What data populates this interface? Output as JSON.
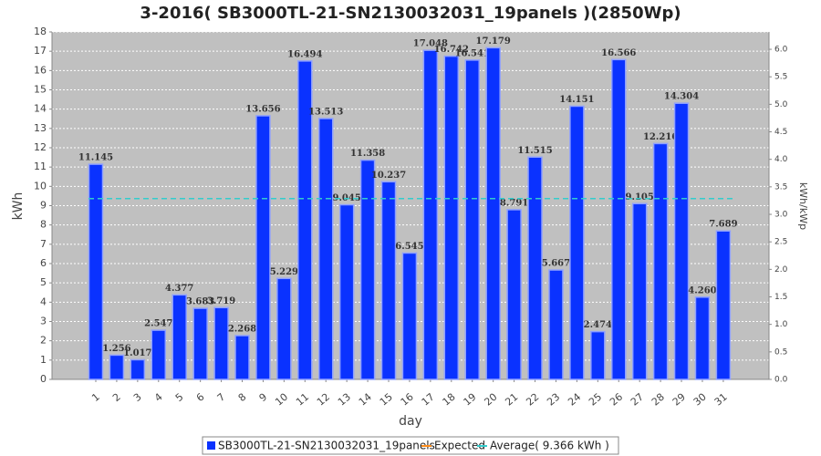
{
  "chart_data": {
    "type": "bar",
    "title": "3-2016( SB3000TL-21-SN2130032031_19panels )(2850Wp)",
    "x_label": "day",
    "y_label": "kWh",
    "y2_label": "kWh/kWp",
    "categories": [
      "1",
      "2",
      "3",
      "4",
      "5",
      "6",
      "7",
      "8",
      "9",
      "10",
      "11",
      "12",
      "13",
      "14",
      "15",
      "16",
      "17",
      "18",
      "19",
      "20",
      "21",
      "22",
      "23",
      "24",
      "25",
      "26",
      "27",
      "28",
      "29",
      "30",
      "31"
    ],
    "series": [
      {
        "name": "SB3000TL-21-SN2130032031_19panels",
        "color": "#0a32ff",
        "values": [
          11.145,
          1.256,
          1.017,
          2.547,
          4.377,
          3.683,
          3.719,
          2.268,
          13.656,
          5.229,
          16.494,
          13.513,
          9.045,
          11.358,
          10.237,
          6.545,
          17.048,
          16.742,
          16.541,
          17.179,
          8.791,
          11.515,
          5.667,
          14.151,
          2.474,
          16.566,
          9.105,
          12.216,
          14.304,
          4.26,
          7.689
        ],
        "value_labels": [
          "11.145",
          "1.256",
          "1.017",
          "2.547",
          "4.377",
          "3.683",
          "3.719",
          "2.268",
          "13.656",
          "5.229",
          "16.494",
          "13.513",
          "9.045",
          "11.358",
          "10.237",
          "6.545",
          "17.048",
          "16.742",
          "16.541",
          "17.179",
          "8.791",
          "11.515",
          "5.667",
          "14.151",
          "2.474",
          "16.566",
          "9.105",
          "12.216",
          "14.304",
          "4.260",
          "7.689"
        ]
      },
      {
        "name": "Expected",
        "color": "#ff8c1a"
      },
      {
        "name": "Average( 9.366 kWh )",
        "color": "#33cccc",
        "value": 9.366
      }
    ],
    "ylim": [
      0,
      18
    ],
    "yticks": [
      0,
      1,
      2,
      3,
      4,
      5,
      6,
      7,
      8,
      9,
      10,
      11,
      12,
      13,
      14,
      15,
      16,
      17,
      18
    ],
    "y2lim": [
      0,
      6.3158
    ],
    "y2ticks": [
      {
        "value": 0,
        "label": "0.0"
      },
      0.5,
      {
        "value": 1,
        "label": "1.0"
      },
      1.5,
      {
        "value": 2,
        "label": "2.0"
      },
      2.5,
      {
        "value": 3,
        "label": "3.0"
      },
      3.5,
      {
        "value": 4,
        "label": "4.0"
      },
      4.5,
      {
        "value": 5,
        "label": "5.0"
      },
      5.5,
      {
        "value": 6,
        "label": "6.0"
      }
    ],
    "grid": true
  }
}
